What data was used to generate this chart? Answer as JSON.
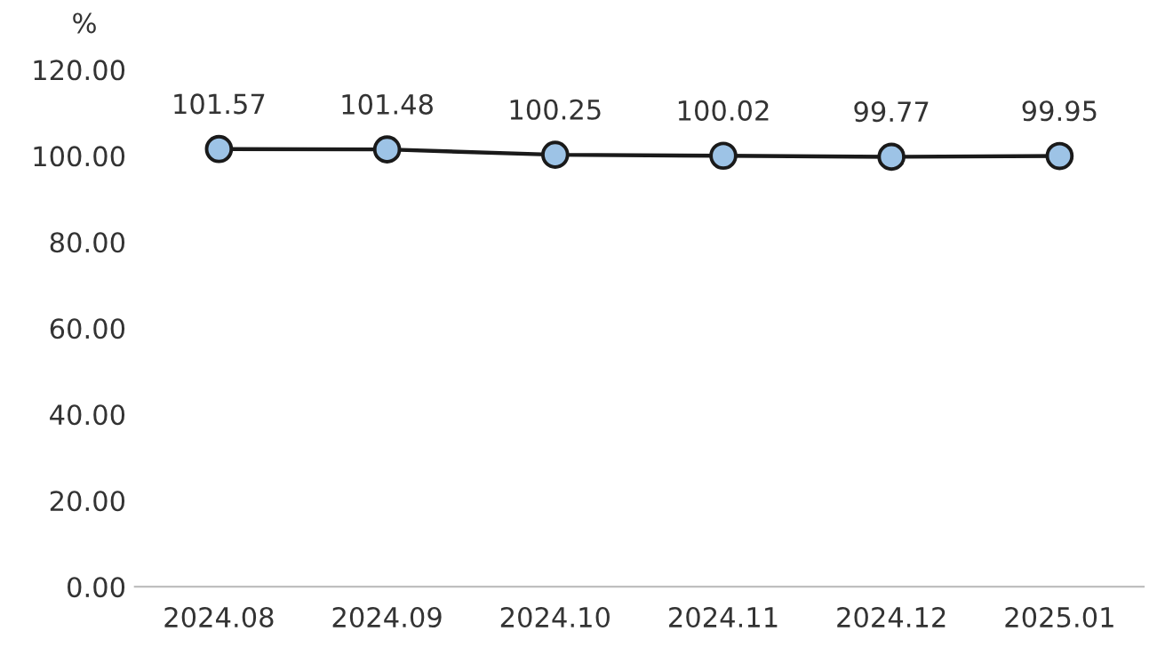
{
  "chart_data": {
    "type": "line",
    "ylabel": "%",
    "categories": [
      "2024.08",
      "2024.09",
      "2024.10",
      "2024.11",
      "2024.12",
      "2025.01"
    ],
    "series": [
      {
        "color": "#9dc3e6",
        "values": [
          101.57,
          101.48,
          100.25,
          100.02,
          99.77,
          99.95
        ]
      }
    ],
    "ylim": [
      0,
      120
    ],
    "yticks": [
      {
        "value": 0,
        "label": "0.00"
      },
      {
        "value": 20,
        "label": "20.00"
      },
      {
        "value": 40,
        "label": "40.00"
      },
      {
        "value": 60,
        "label": "60.00"
      },
      {
        "value": 80,
        "label": "80.00"
      },
      {
        "value": 100,
        "label": "100.00"
      },
      {
        "value": 120,
        "label": "120.00"
      }
    ],
    "data_labels": true,
    "marker": "circle",
    "line_style": "solid",
    "grid": false,
    "legend": false
  }
}
